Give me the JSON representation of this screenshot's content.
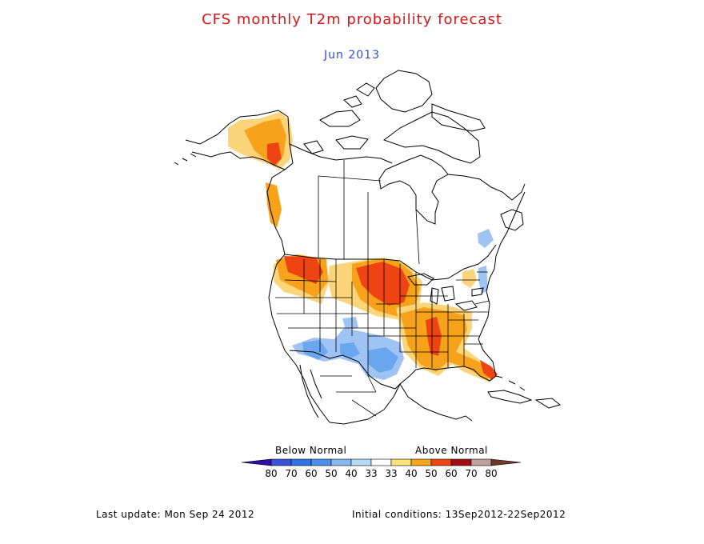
{
  "title": "CFS monthly T2m probability forecast",
  "subtitle": "Jun 2013",
  "colors": {
    "title": "#d81818",
    "subtitle": "#2a4fd8",
    "coast": "#000000",
    "below_40": "#9fc4f4",
    "below_50": "#6aa7ef",
    "above_40": "#fcd57a",
    "above_50": "#f7a21b",
    "above_60": "#ee4413",
    "above_70": "#a20d10"
  },
  "legend": {
    "below_label": "Below Normal",
    "above_label": "Above Normal",
    "bins": [
      {
        "label": "80",
        "color": "#2a0fa8"
      },
      {
        "label": "70",
        "color": "#3a53d6"
      },
      {
        "label": "60",
        "color": "#2f74e4"
      },
      {
        "label": "50",
        "color": "#4a90ec"
      },
      {
        "label": "40",
        "color": "#86b9f3"
      },
      {
        "label": "33",
        "color": "#b4def8"
      },
      {
        "label": "33",
        "color": "#ffffff"
      },
      {
        "label": "40",
        "color": "#fce27a"
      },
      {
        "label": "50",
        "color": "#f7a51b"
      },
      {
        "label": "60",
        "color": "#ee4413"
      },
      {
        "label": "70",
        "color": "#a20d10"
      },
      {
        "label": "80",
        "color": "#bfa39a"
      },
      {
        "label": "",
        "color": "#6b3a2b"
      }
    ]
  },
  "footer": {
    "last_update": "Last update: Mon Sep 24 2012",
    "initial_conditions": "Initial conditions: 13Sep2012-22Sep2012"
  }
}
